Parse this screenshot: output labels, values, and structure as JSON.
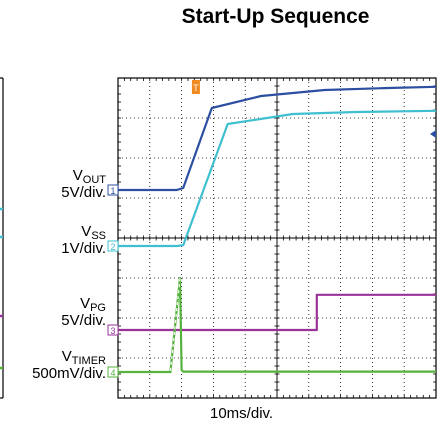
{
  "chart_data": {
    "type": "line",
    "title": "Start-Up Sequence",
    "xlabel": "10ms/div.",
    "x_divisions": 10,
    "y_divisions": 8,
    "xlim": [
      0,
      10
    ],
    "ylim": [
      0,
      8
    ],
    "grid": true,
    "trigger_marker": {
      "label": "T",
      "x": 2.45,
      "color": "#f08a1e"
    },
    "channels": [
      {
        "marker": "1",
        "name_main": "V",
        "name_sub": "OUT",
        "scale": "5V/div.",
        "ground_div": 5.2,
        "color": "#2d4fa1"
      },
      {
        "marker": "2",
        "name_main": "V",
        "name_sub": "SS",
        "scale": "1V/div.",
        "ground_div": 3.8,
        "color": "#3fbfd0"
      },
      {
        "marker": "3",
        "name_main": "V",
        "name_sub": "PG",
        "scale": "5V/div.",
        "ground_div": 1.7,
        "color": "#993399"
      },
      {
        "marker": "4",
        "name_main": "V",
        "name_sub": "TIMER",
        "scale": "500mV/div.",
        "ground_div": 0.65,
        "color": "#55b23d"
      }
    ],
    "series": [
      {
        "name": "VOUT",
        "color": "#2d4fa1",
        "x": [
          0,
          1.85,
          2.05,
          2.95,
          4.5,
          6.5,
          8.5,
          10
        ],
        "y": [
          5.2,
          5.2,
          5.25,
          7.25,
          7.55,
          7.7,
          7.75,
          7.78
        ]
      },
      {
        "name": "VSS",
        "color": "#3fbfd0",
        "x": [
          0,
          1.85,
          2.05,
          3.45,
          5.5,
          7.5,
          10
        ],
        "y": [
          3.8,
          3.8,
          3.82,
          6.85,
          7.1,
          7.15,
          7.18
        ]
      },
      {
        "name": "VPG",
        "color": "#993399",
        "x": [
          0,
          6.25,
          6.25,
          10
        ],
        "y": [
          1.7,
          1.7,
          2.58,
          2.58
        ]
      },
      {
        "name": "VTIMER",
        "color": "#55b23d",
        "x": [
          0,
          1.65,
          1.65,
          1.95,
          2.0,
          2.05,
          10
        ],
        "y": [
          0.65,
          0.65,
          0.68,
          3.0,
          0.7,
          0.66,
          0.66
        ]
      }
    ]
  }
}
